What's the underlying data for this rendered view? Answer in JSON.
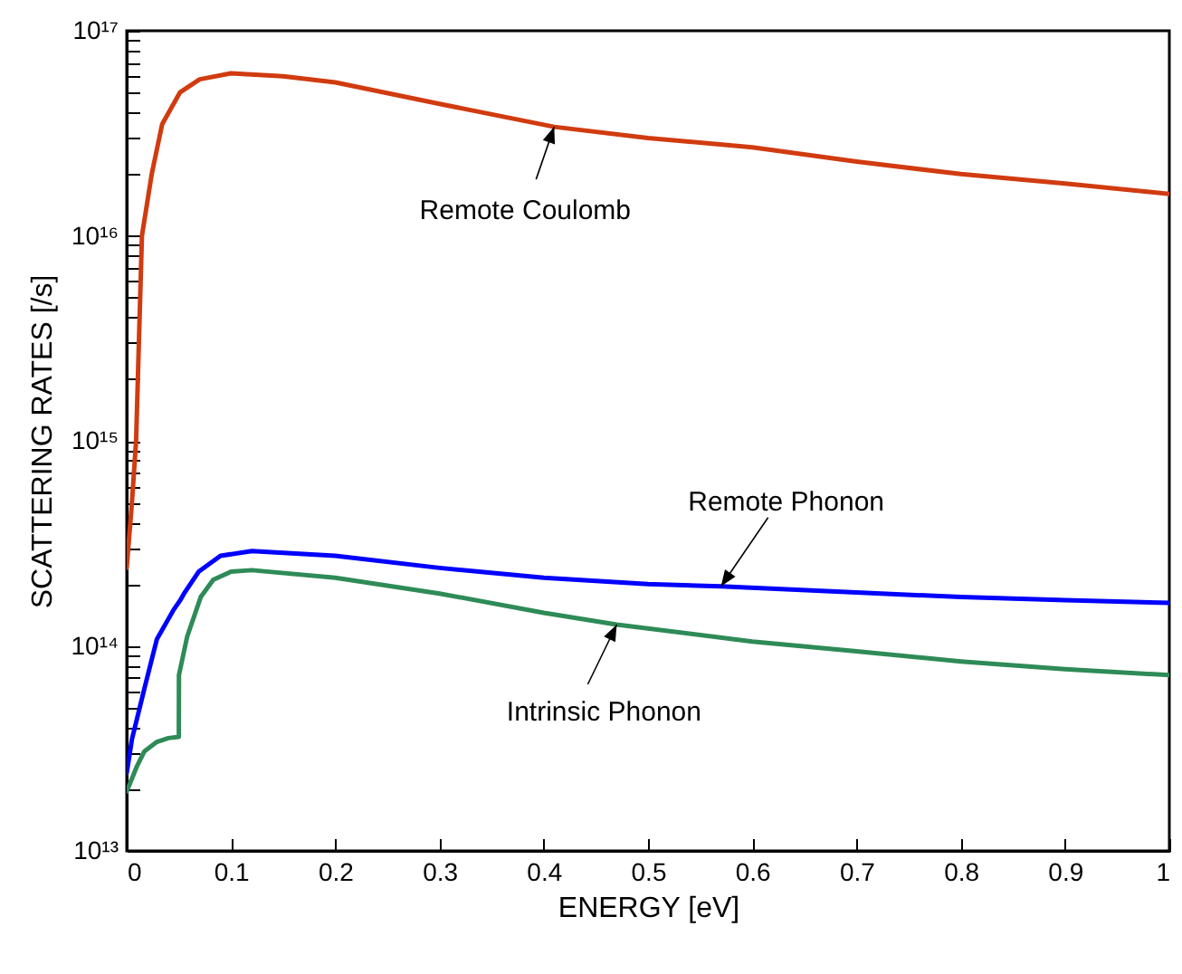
{
  "chart_data": {
    "type": "line",
    "xlabel": "ENERGY [eV]",
    "ylabel": "SCATTERING RATES [/s]",
    "log": "y",
    "grid": false,
    "line_style": "solid",
    "marker": "none",
    "xlim": [
      0,
      1
    ],
    "xticks": [
      0,
      0.1,
      0.2,
      0.3,
      0.4,
      0.5,
      0.6,
      0.7,
      0.8,
      0.9,
      1
    ],
    "ylim": [
      10000000000000.0,
      1e+17
    ],
    "yticks": [
      {
        "value": 10000000000000.0,
        "label": "10¹³"
      },
      {
        "value": 20000000000000.0,
        "label": null
      },
      {
        "value": 30000000000000.0,
        "label": null
      },
      {
        "value": 40000000000000.0,
        "label": null
      },
      {
        "value": 50000000000000.0,
        "label": null
      },
      {
        "value": 60000000000000.0,
        "label": null
      },
      {
        "value": 70000000000000.0,
        "label": null
      },
      {
        "value": 80000000000000.0,
        "label": null
      },
      {
        "value": 90000000000000.0,
        "label": null
      },
      {
        "value": 100000000000000.0,
        "label": "10¹⁴"
      },
      {
        "value": 200000000000000.0,
        "label": null
      },
      {
        "value": 300000000000000.0,
        "label": null
      },
      {
        "value": 400000000000000.0,
        "label": null
      },
      {
        "value": 500000000000000.0,
        "label": null
      },
      {
        "value": 600000000000000.0,
        "label": null
      },
      {
        "value": 700000000000000.0,
        "label": null
      },
      {
        "value": 800000000000000.0,
        "label": null
      },
      {
        "value": 900000000000000.0,
        "label": null
      },
      {
        "value": 1000000000000000.0,
        "label": "10¹⁵"
      },
      {
        "value": 2000000000000000.0,
        "label": null
      },
      {
        "value": 3000000000000000.0,
        "label": null
      },
      {
        "value": 4000000000000000.0,
        "label": null
      },
      {
        "value": 5000000000000000.0,
        "label": null
      },
      {
        "value": 6000000000000000.0,
        "label": null
      },
      {
        "value": 7000000000000000.0,
        "label": null
      },
      {
        "value": 8000000000000000.0,
        "label": null
      },
      {
        "value": 9000000000000000.0,
        "label": null
      },
      {
        "value": 1e+16,
        "label": "10¹⁶"
      },
      {
        "value": 2e+16,
        "label": null
      },
      {
        "value": 3e+16,
        "label": null
      },
      {
        "value": 4e+16,
        "label": null
      },
      {
        "value": 5e+16,
        "label": null
      },
      {
        "value": 6e+16,
        "label": null
      },
      {
        "value": 7e+16,
        "label": null
      },
      {
        "value": 8e+16,
        "label": null
      },
      {
        "value": 9e+16,
        "label": null
      },
      {
        "value": 1e+17,
        "label": "10¹⁷"
      }
    ],
    "series": [
      {
        "name": "Remote Coulomb",
        "color": "#d13b10",
        "x": [
          0,
          0.005,
          0.009,
          0.0146,
          0.024,
          0.034,
          0.051,
          0.07,
          0.1,
          0.15,
          0.2,
          0.3,
          0.41,
          0.5,
          0.6,
          0.7,
          0.8,
          0.9,
          1
        ],
        "values": [
          240000000000000.0,
          500000000000000.0,
          1000000000000000.0,
          1e+16,
          2e+16,
          3.5e+16,
          5e+16,
          5.8e+16,
          6.2e+16,
          6e+16,
          5.6e+16,
          4.4e+16,
          3.4e+16,
          3e+16,
          2.7e+16,
          2.3e+16,
          2e+16,
          1.8e+16,
          1.6e+16
        ]
      },
      {
        "name": "Remote Phonon",
        "color": "#0000ff",
        "x": [
          0,
          0.005,
          0.017,
          0.029,
          0.045,
          0.051,
          0.055,
          0.069,
          0.09,
          0.12,
          0.2,
          0.3,
          0.4,
          0.5,
          0.57,
          0.7,
          0.8,
          0.9,
          1
        ],
        "values": [
          24000000000000.0,
          35000000000000.0,
          62000000000000.0,
          108000000000000.0,
          150000000000000.0,
          166000000000000.0,
          180000000000000.0,
          230000000000000.0,
          275000000000000.0,
          290000000000000.0,
          275000000000000.0,
          240000000000000.0,
          215000000000000.0,
          200000000000000.0,
          195000000000000.0,
          182000000000000.0,
          173000000000000.0,
          167000000000000.0,
          162000000000000.0
        ]
      },
      {
        "name": "Intrinsic Phonon",
        "color": "#2e8b57",
        "x": [
          0,
          0.01,
          0.017,
          0.029,
          0.04,
          0.05,
          0.0501,
          0.058,
          0.071,
          0.083,
          0.1,
          0.12,
          0.2,
          0.3,
          0.4,
          0.47,
          0.6,
          0.7,
          0.8,
          0.9,
          1
        ],
        "values": [
          19500000000000.0,
          26000000000000.0,
          30600000000000.0,
          34000000000000.0,
          35500000000000.0,
          36000000000000.0,
          72000000000000.0,
          111000000000000.0,
          173000000000000.0,
          210000000000000.0,
          230000000000000.0,
          234000000000000.0,
          215000000000000.0,
          180000000000000.0,
          145000000000000.0,
          127000000000000.0,
          105000000000000.0,
          94000000000000.0,
          84000000000000.0,
          77000000000000.0,
          72000000000000.0
        ]
      }
    ]
  }
}
